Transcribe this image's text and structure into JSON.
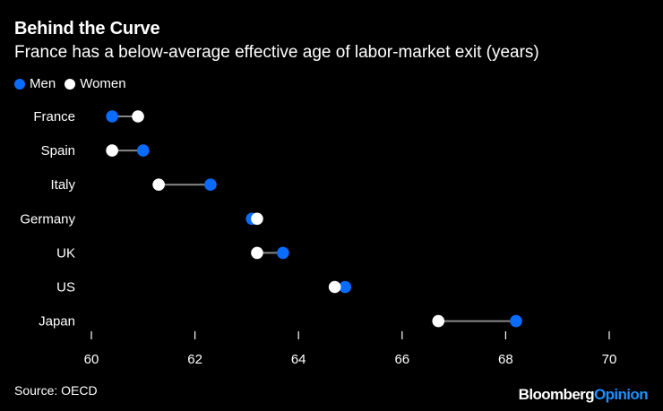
{
  "header": {
    "title": "Behind the Curve",
    "subtitle": "France has a below-average effective age of labor-market exit (years)"
  },
  "legend": {
    "items": [
      {
        "label": "Men",
        "color": "#0a6cff"
      },
      {
        "label": "Women",
        "color": "#ffffff"
      }
    ]
  },
  "chart_data": {
    "type": "dumbbell",
    "categories": [
      "France",
      "Spain",
      "Italy",
      "Germany",
      "UK",
      "US",
      "Japan"
    ],
    "series": [
      {
        "name": "Men",
        "color": "#0a6cff",
        "values": [
          60.4,
          61.0,
          62.3,
          63.1,
          63.7,
          64.9,
          68.2
        ]
      },
      {
        "name": "Women",
        "color": "#ffffff",
        "values": [
          60.9,
          60.4,
          61.3,
          63.2,
          63.2,
          64.7,
          66.7
        ]
      }
    ],
    "xlim": [
      60,
      70
    ],
    "xticks": [
      60,
      62,
      64,
      66,
      68,
      70
    ],
    "connector_color": "#888888",
    "grid": false,
    "legend_position": "top-left"
  },
  "footer": {
    "source": "Source: OECD",
    "brand_part1": "Bloomberg",
    "brand_part2": "Opinion"
  }
}
